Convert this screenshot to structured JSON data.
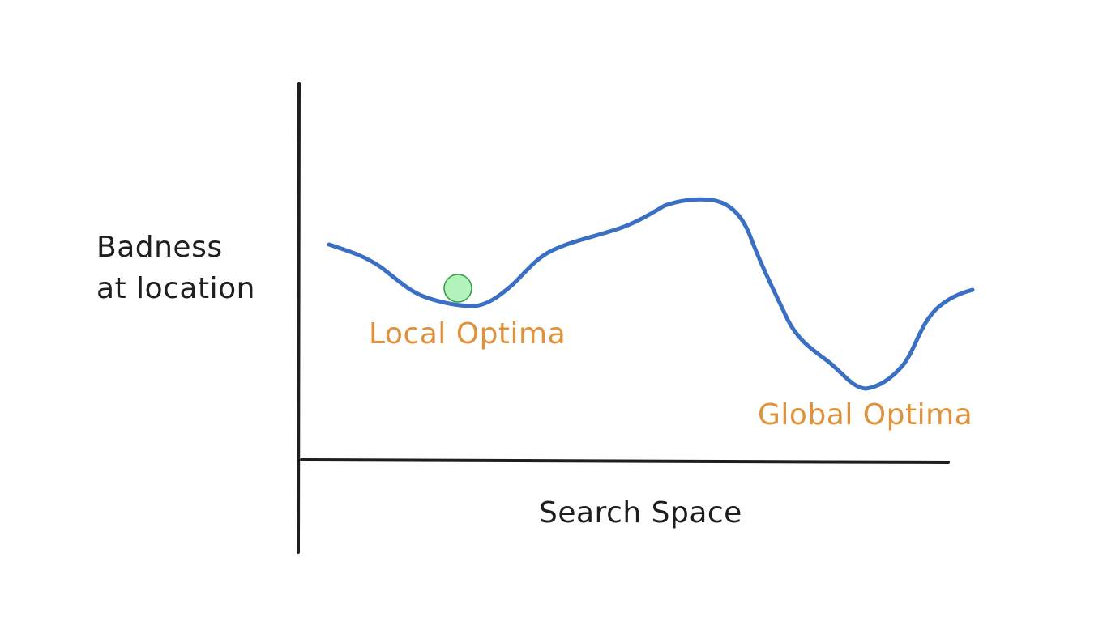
{
  "y_axis_label_line1": "Badness",
  "y_axis_label_line2": "at location",
  "x_axis_label": "Search Space",
  "local_label": "Local Optima",
  "global_label": "Global Optima",
  "colors": {
    "axis": "#1e1e1e",
    "curve": "#3a6fc4",
    "annotation": "#e0913a",
    "ball_fill": "#b2f2bb",
    "ball_stroke": "#2f9e44",
    "text": "#1e1e1e"
  }
}
